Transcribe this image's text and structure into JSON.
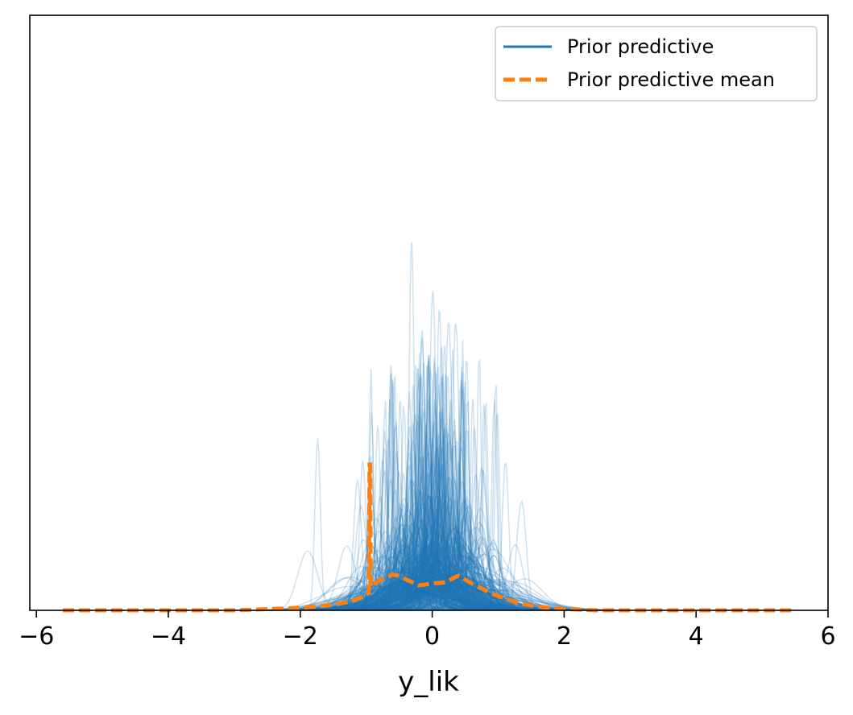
{
  "chart_data": {
    "type": "line",
    "title": "",
    "xlabel": "y_lik",
    "ylabel": "",
    "xlim": [
      -6.1,
      6.0
    ],
    "ylim": [
      0,
      1.0
    ],
    "x_ticks": [
      -6,
      -4,
      -2,
      0,
      2,
      4,
      6
    ],
    "x_tick_labels": [
      "−6",
      "−4",
      "−2",
      "0",
      "2",
      "4",
      "6"
    ],
    "y_ticks_visible": false,
    "grid": false,
    "legend": {
      "placement": "top-right"
    },
    "colors": {
      "prior_predictive": "#1f77b4",
      "mean": "#ff7f0e"
    },
    "series": [
      {
        "name": "Prior predictive",
        "style": "solid",
        "draws": 500,
        "description_note": "many semi-transparent KDE curves"
      },
      {
        "name": "Prior predictive mean",
        "style": "dashed",
        "x": [
          -5.6,
          -3.0,
          -2.0,
          -1.5,
          -1.2,
          -1.0,
          -0.96,
          -0.95,
          -0.94,
          -0.93,
          -0.8,
          -0.6,
          -0.5,
          -0.4,
          -0.2,
          0.0,
          0.2,
          0.35,
          0.4,
          0.45,
          0.6,
          0.8,
          1.0,
          1.3,
          1.6,
          2.0,
          2.5,
          3.5,
          5.45
        ],
        "y": [
          0.0,
          0.0,
          0.004,
          0.009,
          0.016,
          0.025,
          0.03,
          0.245,
          0.245,
          0.04,
          0.05,
          0.06,
          0.058,
          0.052,
          0.042,
          0.045,
          0.047,
          0.056,
          0.058,
          0.055,
          0.045,
          0.034,
          0.024,
          0.012,
          0.006,
          0.002,
          0.0,
          0.0,
          0.0
        ]
      }
    ]
  }
}
